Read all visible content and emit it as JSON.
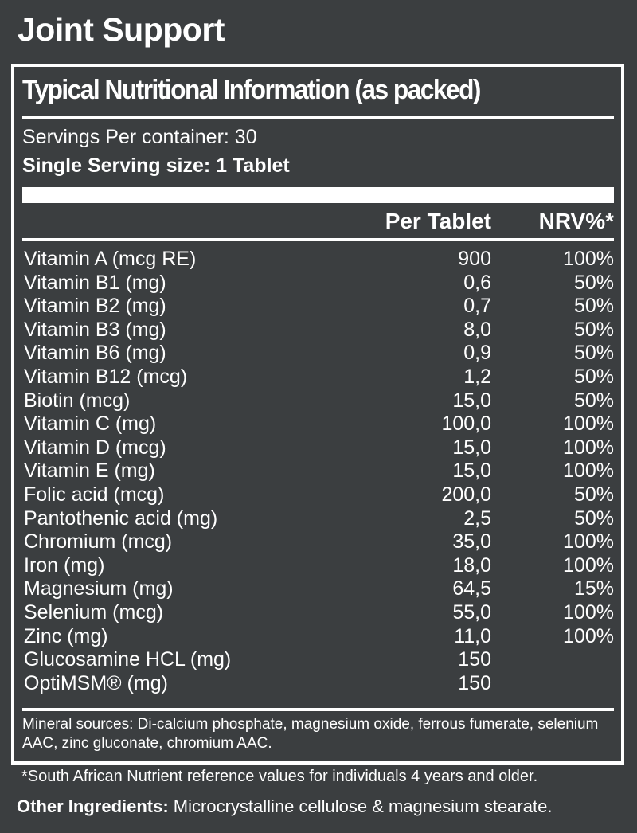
{
  "title": "Joint Support",
  "panel": {
    "heading": "Typical Nutritional Information (as packed)",
    "servings": "Servings Per container: 30",
    "serving_size": "Single Serving size: 1 Tablet",
    "columns": {
      "per_tablet": "Per Tablet",
      "nrv": "NRV%*"
    },
    "rows": [
      {
        "name": "Vitamin A (mcg RE)",
        "value": "900",
        "nrv": "100%"
      },
      {
        "name": "Vitamin B1 (mg)",
        "value": "0,6",
        "nrv": "50%"
      },
      {
        "name": "Vitamin B2 (mg)",
        "value": "0,7",
        "nrv": "50%"
      },
      {
        "name": "Vitamin B3 (mg)",
        "value": "8,0",
        "nrv": "50%"
      },
      {
        "name": "Vitamin B6 (mg)",
        "value": "0,9",
        "nrv": "50%"
      },
      {
        "name": "Vitamin B12 (mcg)",
        "value": "1,2",
        "nrv": "50%"
      },
      {
        "name": "Biotin (mcg)",
        "value": "15,0",
        "nrv": "50%"
      },
      {
        "name": "Vitamin C (mg)",
        "value": "100,0",
        "nrv": "100%"
      },
      {
        "name": "Vitamin D (mcg)",
        "value": "15,0",
        "nrv": "100%"
      },
      {
        "name": "Vitamin E (mg)",
        "value": "15,0",
        "nrv": "100%"
      },
      {
        "name": "Folic acid (mcg)",
        "value": "200,0",
        "nrv": "50%"
      },
      {
        "name": "Pantothenic acid (mg)",
        "value": "2,5",
        "nrv": "50%"
      },
      {
        "name": "Chromium (mcg)",
        "value": "35,0",
        "nrv": "100%"
      },
      {
        "name": "Iron (mg)",
        "value": "18,0",
        "nrv": "100%"
      },
      {
        "name": "Magnesium (mg)",
        "value": "64,5",
        "nrv": "15%"
      },
      {
        "name": "Selenium (mcg)",
        "value": "55,0",
        "nrv": "100%"
      },
      {
        "name": "Zinc (mg)",
        "value": "11,0",
        "nrv": "100%"
      },
      {
        "name": "Glucosamine HCL (mg)",
        "value": "150",
        "nrv": ""
      },
      {
        "name": "OptiMSM® (mg)",
        "value": "150",
        "nrv": ""
      }
    ],
    "mineral_sources": "Mineral sources: Di-calcium phosphate, magnesium oxide, ferrous fumerate, selenium AAC, zinc gluconate, chromium AAC."
  },
  "footnote": "*South African Nutrient reference values for individuals 4 years and older.",
  "other_ingredients": {
    "label": "Other Ingredients:",
    "text": " Microcrystalline cellulose & magnesium stearate."
  },
  "colors": {
    "background": "#3b3e40",
    "text": "#ffffff"
  }
}
